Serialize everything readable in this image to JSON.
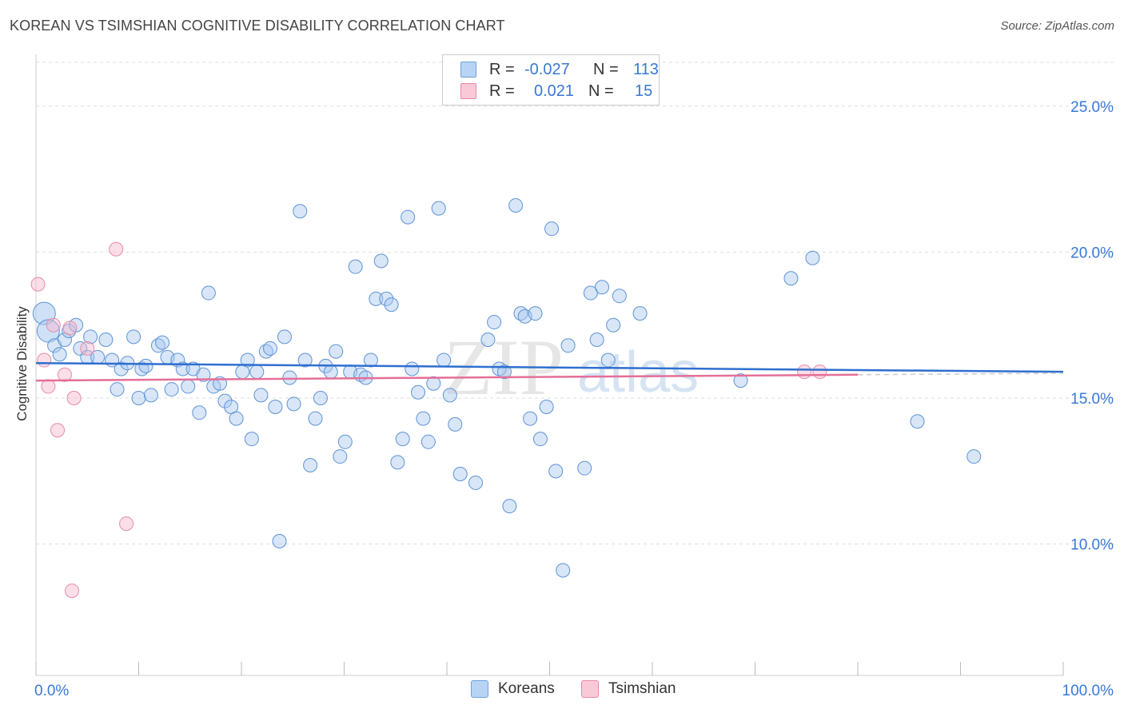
{
  "header": {
    "title": "KOREAN VS TSIMSHIAN COGNITIVE DISABILITY CORRELATION CHART",
    "source": "Source: ZipAtlas.com"
  },
  "legend": {
    "rows": [
      {
        "r_label": "R =",
        "r_value": "-0.027",
        "n_label": "N =",
        "n_value": "113",
        "color": "#a8c8f0",
        "border": "#6f9fd8"
      },
      {
        "r_label": "R =",
        "r_value": "0.021",
        "n_label": "N =",
        "n_value": "15",
        "color": "#f6b8cb",
        "border": "#e88aa8"
      }
    ]
  },
  "bottom_legend": {
    "items": [
      {
        "label": "Koreans",
        "color": "#b8d4f5",
        "border": "#6f9fd8"
      },
      {
        "label": "Tsimshian",
        "color": "#f9c9d7",
        "border": "#e88aa8"
      }
    ]
  },
  "watermark": {
    "zip": "ZIP",
    "atlas": "atlas"
  },
  "chart_data": {
    "type": "scatter",
    "title": "KOREAN VS TSIMSHIAN COGNITIVE DISABILITY CORRELATION CHART",
    "xlabel": "",
    "ylabel": "Cognitive Disability",
    "xlim": [
      0,
      100
    ],
    "ylim": [
      5.5,
      26.5
    ],
    "x_tick_labels": [
      "0.0%",
      "100.0%"
    ],
    "y_ticks": [
      10,
      15,
      20,
      25
    ],
    "y_tick_labels": [
      "10.0%",
      "15.0%",
      "20.0%",
      "25.0%"
    ],
    "grid": true,
    "series": [
      {
        "name": "Koreans",
        "color": "#a8c8f0",
        "stroke": "#5e93d6",
        "trend": {
          "x": [
            0,
            100
          ],
          "y": [
            16.2,
            15.9
          ],
          "color": "#2f6fcf"
        },
        "points": [
          [
            0.8,
            17.9,
            "big"
          ],
          [
            1.2,
            17.3,
            "big"
          ],
          [
            1.8,
            16.8
          ],
          [
            2.3,
            16.5
          ],
          [
            2.8,
            17.0
          ],
          [
            3.2,
            17.3
          ],
          [
            3.9,
            17.5
          ],
          [
            4.3,
            16.7
          ],
          [
            5.0,
            16.4
          ],
          [
            5.3,
            17.1
          ],
          [
            6.0,
            16.4
          ],
          [
            6.8,
            17.0
          ],
          [
            7.4,
            16.3
          ],
          [
            7.9,
            15.3
          ],
          [
            8.3,
            16.0
          ],
          [
            8.9,
            16.2
          ],
          [
            9.5,
            17.1
          ],
          [
            10.0,
            15.0
          ],
          [
            10.3,
            16.0
          ],
          [
            10.7,
            16.1
          ],
          [
            11.2,
            15.1
          ],
          [
            11.9,
            16.8
          ],
          [
            12.3,
            16.9
          ],
          [
            12.8,
            16.4
          ],
          [
            13.2,
            15.3
          ],
          [
            13.8,
            16.3
          ],
          [
            14.3,
            16.0
          ],
          [
            14.8,
            15.4
          ],
          [
            15.3,
            16.0
          ],
          [
            15.9,
            14.5
          ],
          [
            16.3,
            15.8
          ],
          [
            16.8,
            18.6
          ],
          [
            17.3,
            15.4
          ],
          [
            17.9,
            15.5
          ],
          [
            18.4,
            14.9
          ],
          [
            19.0,
            14.7
          ],
          [
            19.5,
            14.3
          ],
          [
            20.1,
            15.9
          ],
          [
            20.6,
            16.3
          ],
          [
            21.0,
            13.6
          ],
          [
            21.5,
            15.9
          ],
          [
            21.9,
            15.1
          ],
          [
            22.4,
            16.6
          ],
          [
            22.8,
            16.7
          ],
          [
            23.3,
            14.7
          ],
          [
            23.7,
            10.1
          ],
          [
            24.2,
            17.1
          ],
          [
            24.7,
            15.7
          ],
          [
            25.1,
            14.8
          ],
          [
            25.7,
            21.4
          ],
          [
            26.2,
            16.3
          ],
          [
            26.7,
            12.7
          ],
          [
            27.2,
            14.3
          ],
          [
            27.7,
            15.0
          ],
          [
            28.2,
            16.1
          ],
          [
            28.7,
            15.9
          ],
          [
            29.2,
            16.6
          ],
          [
            29.6,
            13.0
          ],
          [
            30.1,
            13.5
          ],
          [
            30.6,
            15.9
          ],
          [
            31.1,
            19.5
          ],
          [
            31.6,
            15.8
          ],
          [
            32.1,
            15.7
          ],
          [
            32.6,
            16.3
          ],
          [
            33.1,
            18.4
          ],
          [
            33.6,
            19.7
          ],
          [
            34.1,
            18.4
          ],
          [
            34.6,
            18.2
          ],
          [
            35.2,
            12.8
          ],
          [
            35.7,
            13.6
          ],
          [
            36.2,
            21.2
          ],
          [
            36.6,
            16.0
          ],
          [
            37.2,
            15.2
          ],
          [
            37.7,
            14.3
          ],
          [
            38.2,
            13.5
          ],
          [
            38.7,
            15.5
          ],
          [
            39.2,
            21.5
          ],
          [
            39.7,
            16.3
          ],
          [
            40.3,
            15.1
          ],
          [
            40.8,
            14.1
          ],
          [
            41.3,
            12.4
          ],
          [
            42.8,
            12.1
          ],
          [
            44.0,
            17.0
          ],
          [
            44.6,
            17.6
          ],
          [
            45.1,
            16.0
          ],
          [
            45.6,
            15.9
          ],
          [
            46.1,
            11.3
          ],
          [
            46.7,
            21.6
          ],
          [
            47.2,
            17.9
          ],
          [
            47.6,
            17.8
          ],
          [
            48.1,
            14.3
          ],
          [
            48.6,
            17.9
          ],
          [
            49.1,
            13.6
          ],
          [
            49.7,
            14.7
          ],
          [
            50.2,
            20.8
          ],
          [
            50.6,
            12.5
          ],
          [
            51.3,
            9.1
          ],
          [
            51.8,
            16.8
          ],
          [
            53.4,
            12.6
          ],
          [
            54.0,
            18.6
          ],
          [
            54.6,
            17.0
          ],
          [
            55.1,
            18.8
          ],
          [
            55.7,
            16.3
          ],
          [
            56.2,
            17.5
          ],
          [
            56.8,
            18.5
          ],
          [
            58.8,
            17.9
          ],
          [
            68.6,
            15.6
          ],
          [
            73.5,
            19.1
          ],
          [
            75.6,
            19.8
          ],
          [
            85.8,
            14.2
          ],
          [
            91.3,
            13.0
          ]
        ]
      },
      {
        "name": "Tsimshian",
        "color": "#f6b8cb",
        "stroke": "#e88aa8",
        "trend": {
          "x": [
            0,
            80
          ],
          "y": [
            15.6,
            15.8
          ],
          "color": "#e46f98"
        },
        "points": [
          [
            0.2,
            18.9
          ],
          [
            0.8,
            16.3
          ],
          [
            1.2,
            15.4
          ],
          [
            1.7,
            17.5
          ],
          [
            2.1,
            13.9
          ],
          [
            2.8,
            15.8
          ],
          [
            3.3,
            17.4
          ],
          [
            3.5,
            8.4
          ],
          [
            3.7,
            15.0
          ],
          [
            5.0,
            16.7
          ],
          [
            7.8,
            20.1
          ],
          [
            8.8,
            10.7
          ],
          [
            74.8,
            15.9
          ],
          [
            76.3,
            15.9
          ]
        ]
      }
    ]
  }
}
